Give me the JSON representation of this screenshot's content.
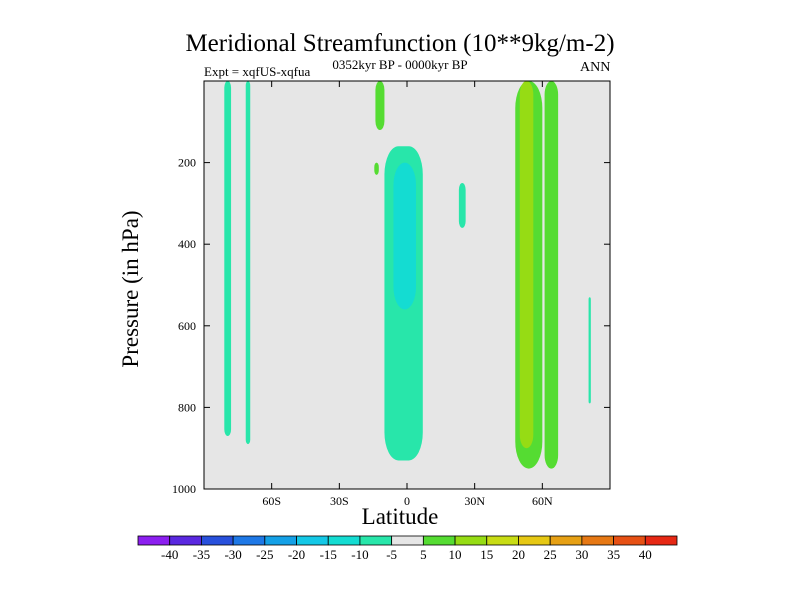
{
  "chart_data": {
    "type": "filled-contour",
    "title": "Meridional Streamfunction (10**9kg/m-2)",
    "left_label": "Expt = xqfUS-xqfua",
    "center_label": "0352kyr BP - 0000kyr BP",
    "right_label": "ANN",
    "xlabel": "Latitude",
    "ylabel": "Pressure (in hPa)",
    "xlim": [
      -90,
      90
    ],
    "ylim": [
      1000,
      0
    ],
    "xticks": [
      {
        "value": -60,
        "label": "60S"
      },
      {
        "value": -30,
        "label": "30S"
      },
      {
        "value": 0,
        "label": "0"
      },
      {
        "value": 30,
        "label": "30N"
      },
      {
        "value": 60,
        "label": "60N"
      }
    ],
    "yticks": [
      {
        "value": 200,
        "label": "200"
      },
      {
        "value": 400,
        "label": "400"
      },
      {
        "value": 600,
        "label": "600"
      },
      {
        "value": 800,
        "label": "800"
      },
      {
        "value": 1000,
        "label": "1000"
      }
    ],
    "background_color": "#e6e6e6",
    "colorbar": {
      "levels": [
        "-40",
        "-35",
        "-30",
        "-25",
        "-20",
        "-15",
        "-10",
        "-5",
        "5",
        "10",
        "15",
        "20",
        "25",
        "30",
        "35",
        "40"
      ],
      "colors": [
        "#8c1ff0",
        "#5a28e0",
        "#2850dc",
        "#1e78e6",
        "#14a0e6",
        "#14c8e6",
        "#14dcd2",
        "#28e6aa",
        "#e6e6e6",
        "#55dc32",
        "#96dc14",
        "#c8dc14",
        "#e6c814",
        "#e6a014",
        "#e67814",
        "#e65014",
        "#e62814"
      ]
    },
    "regions": [
      {
        "name": "cell-80s-negative",
        "level": "-10 to -5",
        "color": "#28e6aa",
        "lat": [
          -81,
          -78
        ],
        "p": [
          0,
          870
        ]
      },
      {
        "name": "cell-70s-negative",
        "level": "-10 to -5",
        "color": "#28e6aa",
        "lat": [
          -71.5,
          -69.5
        ],
        "p": [
          0,
          890
        ]
      },
      {
        "name": "cell-equator-negative",
        "level": "-10 to -5",
        "color": "#28e6aa",
        "lat": [
          -10,
          7
        ],
        "p": [
          160,
          930
        ]
      },
      {
        "name": "cell-equator-core",
        "level": "-15 to -10",
        "color": "#14dcd2",
        "lat": [
          -6,
          4
        ],
        "p": [
          200,
          560
        ]
      },
      {
        "name": "cell-25n-negative",
        "level": "-10 to -5",
        "color": "#28e6aa",
        "lat": [
          23,
          26
        ],
        "p": [
          250,
          360
        ]
      },
      {
        "name": "cell-15s-positive",
        "level": "5 to 10",
        "color": "#55dc32",
        "lat": [
          -14,
          -10
        ],
        "p": [
          0,
          120
        ]
      },
      {
        "name": "cell-15s-positive-small",
        "level": "5 to 10",
        "color": "#55dc32",
        "lat": [
          -14.5,
          -12.5
        ],
        "p": [
          200,
          230
        ]
      },
      {
        "name": "cell-50n-positive",
        "level": "5 to 10",
        "color": "#55dc32",
        "lat": [
          48,
          60
        ],
        "p": [
          0,
          950
        ]
      },
      {
        "name": "cell-50n-core",
        "level": "10 to 15",
        "color": "#96dc14",
        "lat": [
          50,
          56
        ],
        "p": [
          0,
          900
        ]
      },
      {
        "name": "cell-65n-positive",
        "level": "5 to 10",
        "color": "#55dc32",
        "lat": [
          61,
          67
        ],
        "p": [
          0,
          950
        ]
      },
      {
        "name": "cell-85n-negative",
        "level": "-10 to -5",
        "color": "#28e6aa",
        "lat": [
          80.5,
          81.5
        ],
        "p": [
          530,
          790
        ]
      }
    ]
  }
}
